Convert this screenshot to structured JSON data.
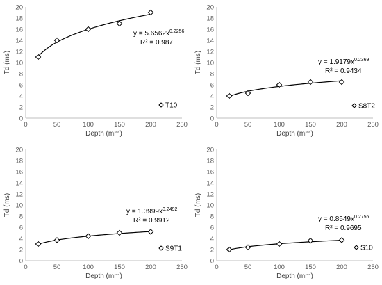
{
  "chart_data": [
    {
      "type": "scatter",
      "xlabel": "Depth (mm)",
      "ylabel": "Td (ms)",
      "xlim": [
        0,
        250
      ],
      "ylim": [
        0,
        20
      ],
      "xticks": [
        0,
        50,
        100,
        150,
        200,
        250
      ],
      "yticks": [
        0,
        2,
        4,
        6,
        8,
        10,
        12,
        14,
        16,
        18,
        20
      ],
      "grid": false,
      "legend_position": "bottom-right",
      "series": [
        {
          "name": "T10",
          "marker": "diamond",
          "x": [
            20,
            50,
            100,
            150,
            200
          ],
          "y": [
            11,
            14,
            16,
            17,
            19
          ]
        }
      ],
      "trendline": {
        "type": "power",
        "a": 5.6562,
        "b": 0.2256,
        "equation_label": "y = 5.6562x",
        "exponent_label": "0.2256",
        "r2_label": "R² = 0.987"
      }
    },
    {
      "type": "scatter",
      "xlabel": "Depth (mm)",
      "ylabel": "Td (ms)",
      "xlim": [
        0,
        250
      ],
      "ylim": [
        0,
        20
      ],
      "xticks": [
        0,
        50,
        100,
        150,
        200,
        250
      ],
      "yticks": [
        0,
        2,
        4,
        6,
        8,
        10,
        12,
        14,
        16,
        18,
        20
      ],
      "grid": false,
      "legend_position": "bottom-right",
      "series": [
        {
          "name": "S8T2",
          "marker": "diamond",
          "x": [
            20,
            50,
            100,
            150,
            200
          ],
          "y": [
            4,
            4.5,
            6,
            6.5,
            6.5
          ]
        }
      ],
      "trendline": {
        "type": "power",
        "a": 1.9179,
        "b": 0.2369,
        "equation_label": "y = 1.9179x",
        "exponent_label": "0.2369",
        "r2_label": "R² = 0.9434"
      }
    },
    {
      "type": "scatter",
      "xlabel": "Depth (mm)",
      "ylabel": "Td (ms)",
      "xlim": [
        0,
        250
      ],
      "ylim": [
        0,
        20
      ],
      "xticks": [
        0,
        50,
        100,
        150,
        200,
        250
      ],
      "yticks": [
        0,
        2,
        4,
        6,
        8,
        10,
        12,
        14,
        16,
        18,
        20
      ],
      "grid": false,
      "legend_position": "bottom-right",
      "series": [
        {
          "name": "S9T1",
          "marker": "diamond",
          "x": [
            20,
            50,
            100,
            150,
            200
          ],
          "y": [
            3,
            3.7,
            4.4,
            5,
            5.2
          ]
        }
      ],
      "trendline": {
        "type": "power",
        "a": 1.3999,
        "b": 0.2492,
        "equation_label": "y = 1.3999x",
        "exponent_label": "0.2492",
        "r2_label": "R² = 0.9912"
      }
    },
    {
      "type": "scatter",
      "xlabel": "Depth (mm)",
      "ylabel": "Td (ms)",
      "xlim": [
        0,
        250
      ],
      "ylim": [
        0,
        20
      ],
      "xticks": [
        0,
        50,
        100,
        150,
        200,
        250
      ],
      "yticks": [
        0,
        2,
        4,
        6,
        8,
        10,
        12,
        14,
        16,
        18,
        20
      ],
      "grid": false,
      "legend_position": "bottom-right",
      "series": [
        {
          "name": "S10",
          "marker": "diamond",
          "x": [
            20,
            50,
            100,
            150,
            200
          ],
          "y": [
            2,
            2.4,
            3,
            3.6,
            3.7
          ]
        }
      ],
      "trendline": {
        "type": "power",
        "a": 0.8549,
        "b": 0.2756,
        "equation_label": "y = 0.8549x",
        "exponent_label": "0.2756",
        "r2_label": "R² = 0.9695"
      }
    }
  ],
  "colors": {
    "marker_stroke": "#000000",
    "line": "#000000",
    "axis": "#bfbfbf",
    "text": "#595959"
  }
}
